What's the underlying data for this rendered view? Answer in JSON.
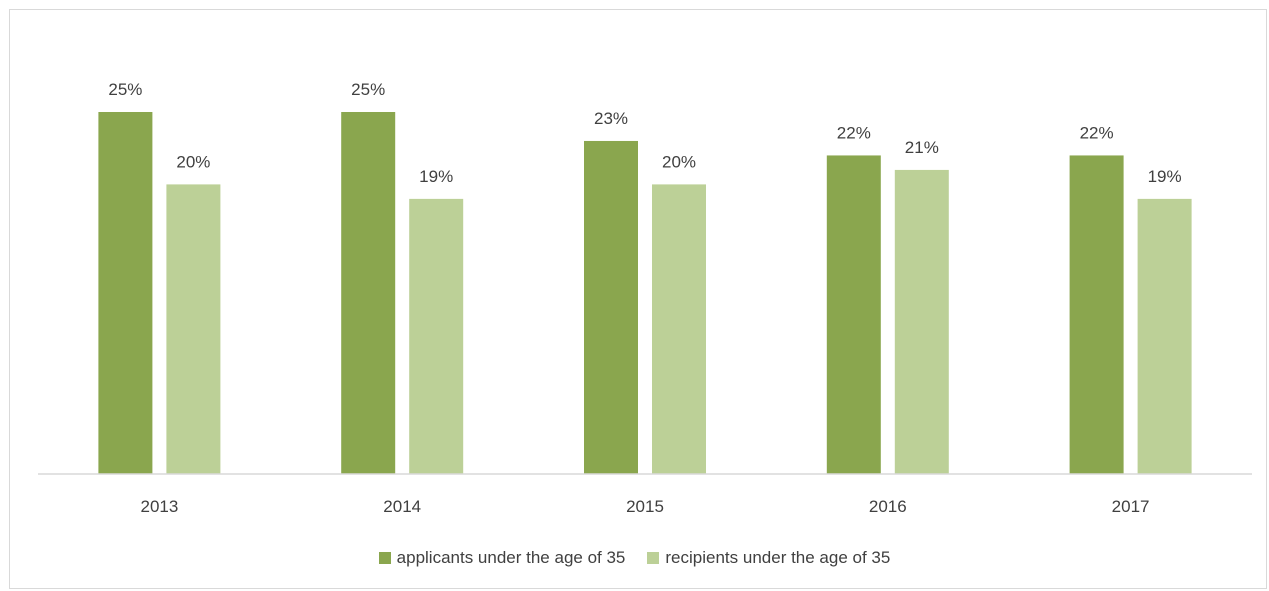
{
  "chart_data": {
    "type": "bar",
    "title": "",
    "xlabel": "",
    "ylabel": "",
    "categories": [
      "2013",
      "2014",
      "2015",
      "2016",
      "2017"
    ],
    "series": [
      {
        "name": "applicants under the age of 35",
        "values": [
          25,
          25,
          23,
          22,
          22
        ],
        "labels": [
          "25%",
          "25%",
          "23%",
          "22%",
          "22%"
        ],
        "color": "#8aa64e"
      },
      {
        "name": "recipients under the age of 35",
        "values": [
          20,
          19,
          20,
          21,
          19
        ],
        "labels": [
          "20%",
          "19%",
          "20%",
          "21%",
          "19%"
        ],
        "color": "#bcd097"
      }
    ],
    "ylim": [
      0,
      25
    ],
    "grid": false,
    "legend_position": "bottom",
    "axis_color": "#d9d9d9"
  }
}
